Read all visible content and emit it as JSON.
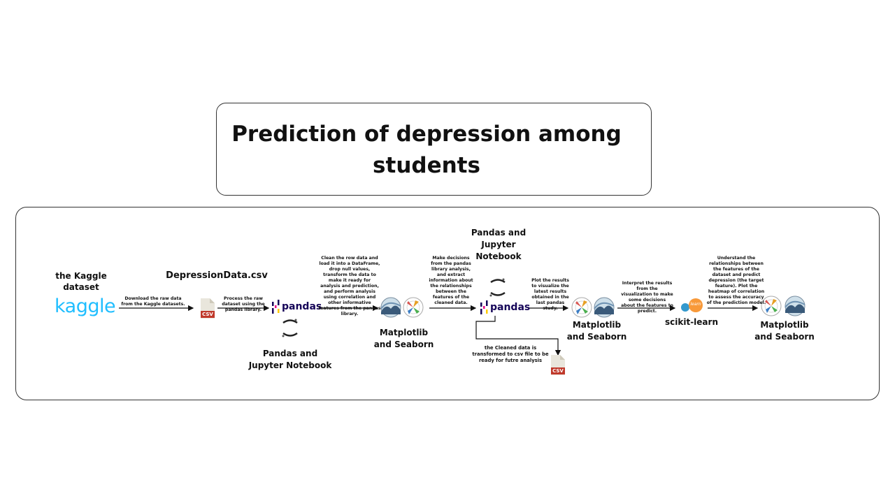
{
  "title": "Prediction of depression among students",
  "nodes": {
    "kaggle": {
      "label": "the Kaggle dataset",
      "logo": "kaggle"
    },
    "csv_file": {
      "label": "DepressionData.csv",
      "badge": "CSV"
    },
    "pandas1": {
      "label": "Pandas and Jupyter Notebook",
      "logo": "pandas"
    },
    "viz1": {
      "label": "Matplotlib and Seaborn"
    },
    "pandas2": {
      "label": "Pandas and Jupyter Notebook",
      "logo": "pandas"
    },
    "viz2": {
      "label": "Matplotlib and Seaborn"
    },
    "sklearn": {
      "label": "scikit-learn",
      "logo": "learn"
    },
    "viz3": {
      "label": "Matplotlib and Seaborn"
    },
    "csv_clean": {
      "badge": "CSV"
    }
  },
  "steps": {
    "download": "Download the raw data from the Kaggle datasets.",
    "process": "Process the raw dataset using the pandas library.",
    "clean": "Clean the row data and load it into a DataFrame, drop null values, transform the data to make it ready for analysis and prediction, and perform analysis using correlation and other informative features from the pandas library.",
    "decide": "Make decisions from the pandas library analysis, and extract information about the relationships between the features of the cleaned data.",
    "plot": "Plot the results to visualize the latest results obtained in the last pandas study.",
    "interpret": "Interpret the results from the visualization to make some decisions about the features to predict.",
    "understand": "Understand the relationships between the features of the dataset and predict depression (the target feature). Plot the heatmap of correlation to assess the accuracy of the prediction model.",
    "export": "the Cleaned data is transformed to csv file to be ready for futre analysis"
  }
}
